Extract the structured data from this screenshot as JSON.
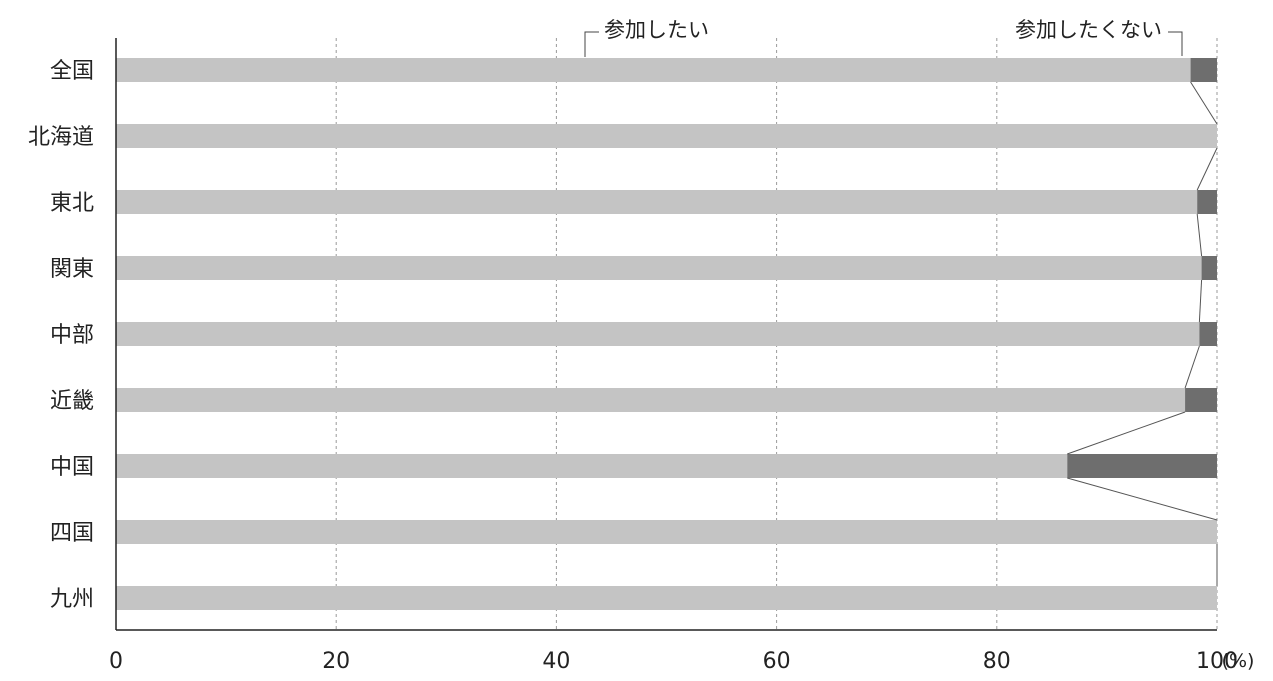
{
  "chart_data": {
    "type": "bar",
    "stacked": true,
    "orientation": "horizontal",
    "categories": [
      "全国",
      "北海道",
      "東北",
      "関東",
      "中部",
      "近畿",
      "中国",
      "四国",
      "九州"
    ],
    "series": [
      {
        "name": "参加したい",
        "values": [
          97.6,
          100.0,
          98.2,
          98.6,
          98.4,
          97.1,
          86.4,
          100.0,
          100.0
        ],
        "color": "#c4c4c4"
      },
      {
        "name": "参加したくない",
        "values": [
          2.4,
          0.0,
          1.8,
          1.4,
          1.6,
          2.9,
          13.6,
          0.0,
          0.0
        ],
        "color": "#6e6e6e"
      }
    ],
    "xlim": [
      0,
      100
    ],
    "xticks": [
      "0",
      "20",
      "40",
      "60",
      "80",
      "100"
    ],
    "xunit": "(%)",
    "grid": "vertical dashed"
  }
}
